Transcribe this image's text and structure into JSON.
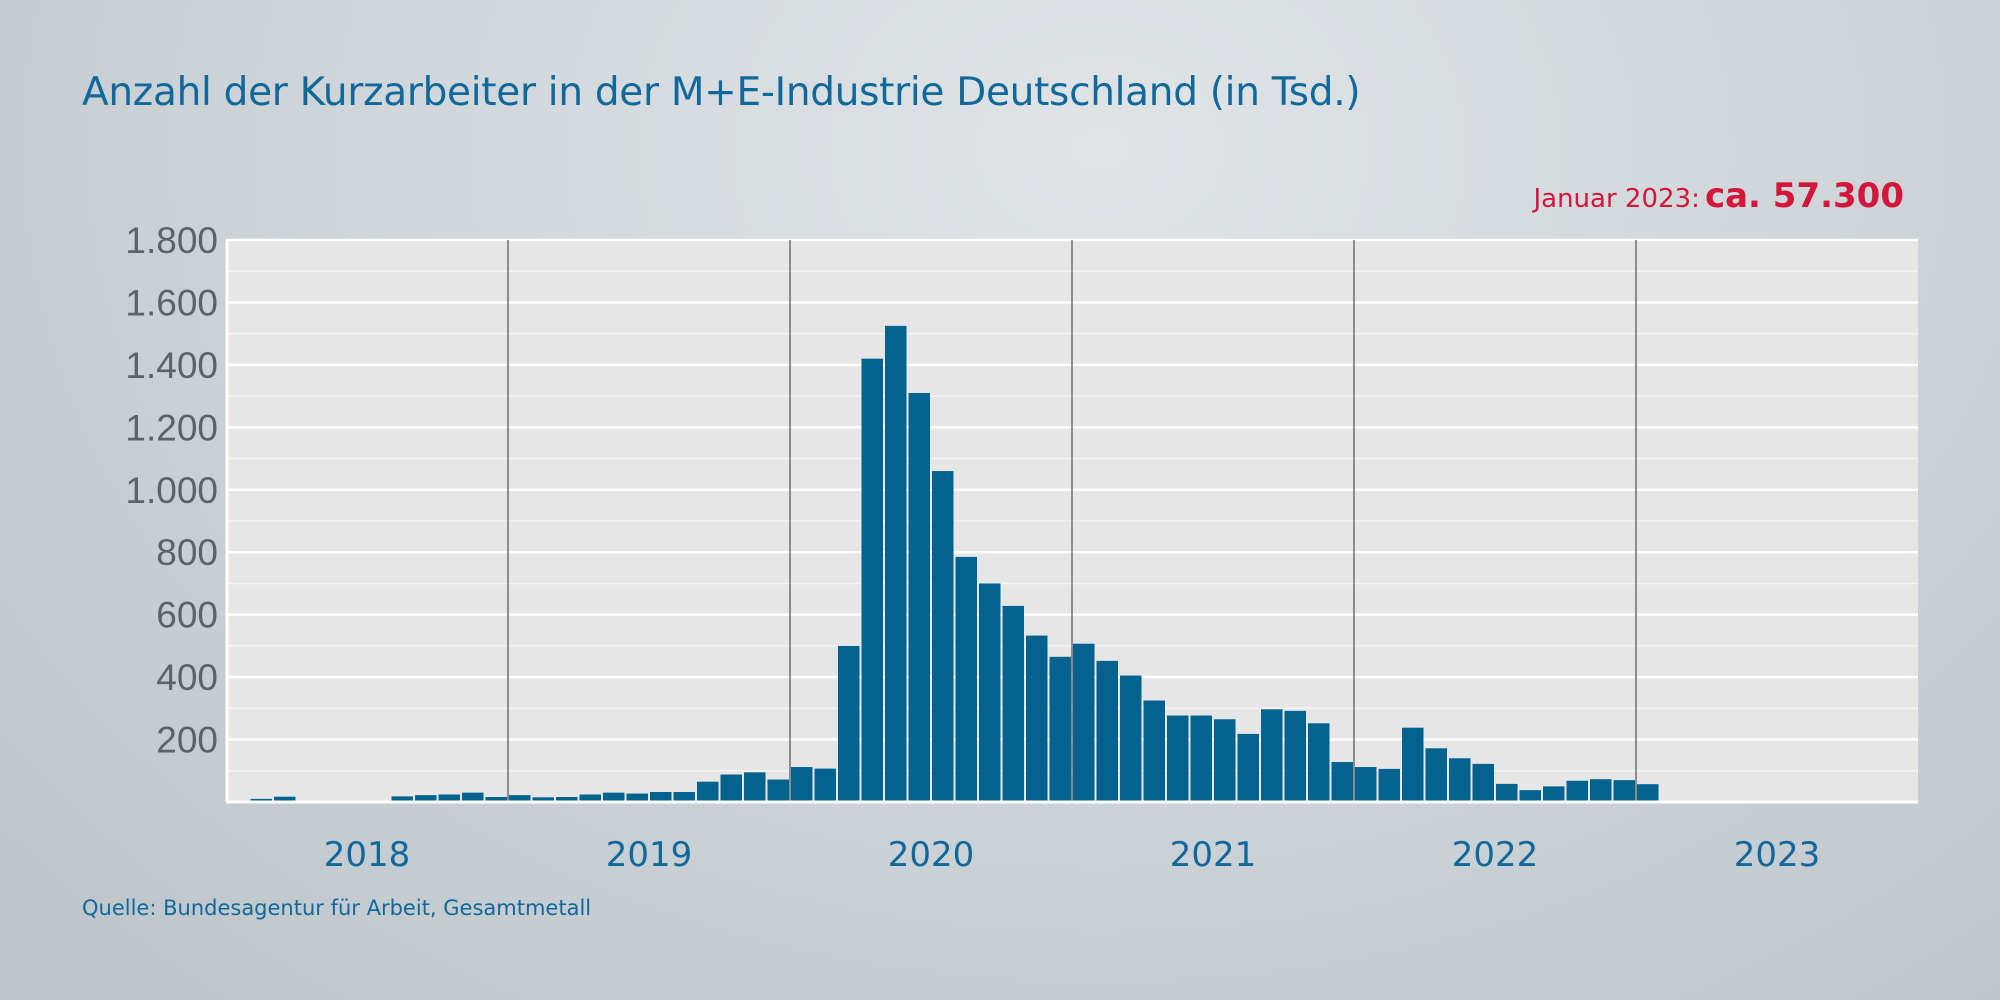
{
  "chart_data": {
    "type": "bar",
    "title": "Anzahl der Kurzarbeiter in der M+E-Industrie Deutschland (in Tsd.)",
    "annotation": {
      "label": "Januar 2023:",
      "value": "ca. 57.300"
    },
    "source": "Quelle: Bundesagentur für Arbeit, Gesamtmetall",
    "xlabel": "",
    "ylabel": "",
    "ylim": [
      0,
      1800
    ],
    "y_ticks": [
      200,
      400,
      600,
      800,
      1000,
      1200,
      1400,
      1600,
      1800
    ],
    "y_tick_labels": [
      "200",
      "400",
      "600",
      "800",
      "1.000",
      "1.200",
      "1.400",
      "1.600",
      "1.800"
    ],
    "years": [
      "2018",
      "2019",
      "2020",
      "2021",
      "2022",
      "2023"
    ],
    "months_per_year": 12,
    "grid": true,
    "series": [
      {
        "name": "Kurzarbeiter (Tsd.)",
        "color": "#04628f",
        "values": [
          null,
          10,
          17,
          null,
          null,
          null,
          null,
          18,
          22,
          24,
          30,
          16,
          22,
          15,
          16,
          24,
          30,
          27,
          32,
          32,
          65,
          88,
          95,
          72,
          112,
          107,
          500,
          1420,
          1525,
          1310,
          1060,
          785,
          700,
          628,
          533,
          465,
          507,
          452,
          405,
          325,
          277,
          277,
          265,
          218,
          297,
          292,
          252,
          128,
          112,
          106,
          238,
          172,
          140,
          122,
          58,
          38,
          50,
          68,
          73,
          70,
          57
        ]
      }
    ]
  }
}
